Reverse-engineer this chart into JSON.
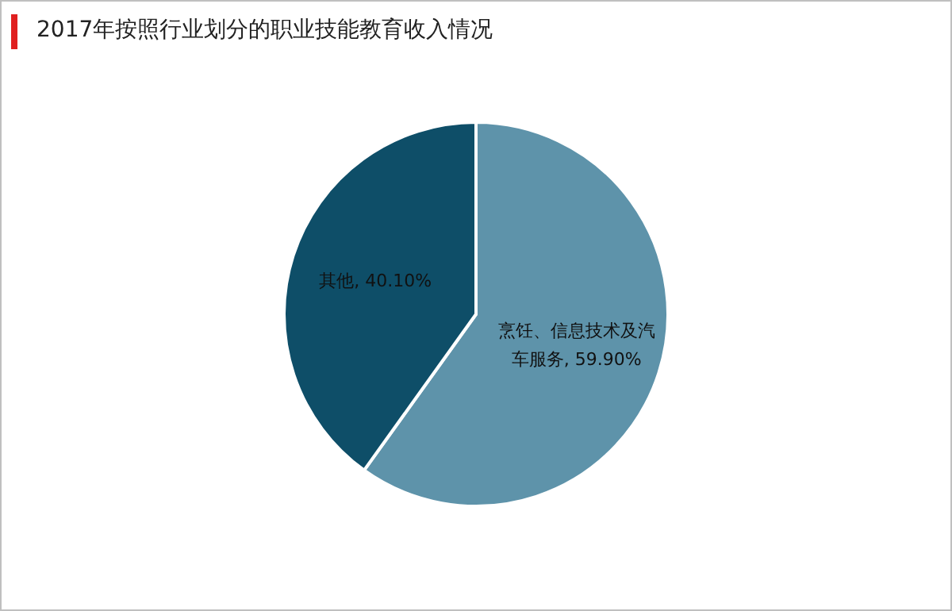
{
  "chart_data": {
    "type": "pie",
    "title": "2017年按照行业划分的职业技能教育收入情况",
    "categories": [
      "烹饪、信息技术及汽车服务",
      "其他"
    ],
    "values": [
      59.9,
      40.1
    ],
    "colors": [
      "#5e93aa",
      "#0e4e68"
    ],
    "value_labels": [
      "59.90%",
      "40.10%"
    ],
    "legend": false
  }
}
